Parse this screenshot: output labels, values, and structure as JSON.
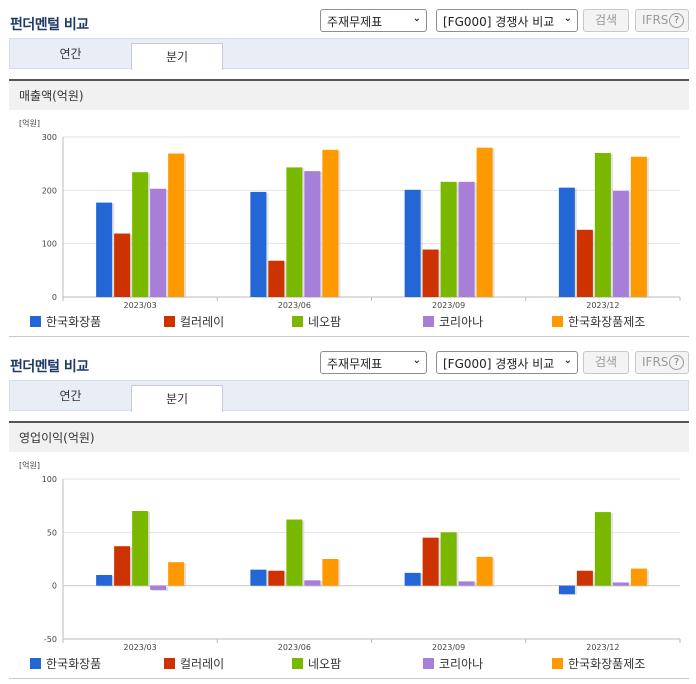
{
  "colors": [
    "#2366d6",
    "#cc3300",
    "#7ab800",
    "#a77fd8",
    "#ff9900"
  ],
  "sections": [
    {
      "title": "펀더멘털 비교",
      "select_report": "주재무제표",
      "select_compare": "[FG000] 경쟁사 비교",
      "search_label": "검색",
      "ifrs_label": "IFRS",
      "help_label": "?",
      "tab_annual": "연간",
      "tab_quarter": "분기",
      "panel_title": "매출액(억원)",
      "chart_data": {
        "type": "bar",
        "title": "매출액(억원)",
        "unit": "[억원]",
        "categories": [
          "2023/03",
          "2023/06",
          "2023/09",
          "2023/12"
        ],
        "ylim": [
          0,
          300
        ],
        "yticks": [
          0,
          100,
          200,
          300
        ],
        "grid": true,
        "legend": "bottom",
        "series": [
          {
            "name": "한국화장품",
            "values": [
              177,
              197,
              201,
              205
            ]
          },
          {
            "name": "컬러레이",
            "values": [
              119,
              68,
              89,
              126
            ]
          },
          {
            "name": "네오팜",
            "values": [
              234,
              243,
              216,
              270
            ]
          },
          {
            "name": "코리아나",
            "values": [
              203,
              236,
              216,
              199
            ]
          },
          {
            "name": "한국화장품제조",
            "values": [
              269,
              276,
              280,
              263
            ]
          }
        ]
      }
    },
    {
      "title": "펀더멘털 비교",
      "select_report": "주재무제표",
      "select_compare": "[FG000] 경쟁사 비교",
      "search_label": "검색",
      "ifrs_label": "IFRS",
      "help_label": "?",
      "tab_annual": "연간",
      "tab_quarter": "분기",
      "panel_title": "영업이익(억원)",
      "chart_data": {
        "type": "bar",
        "title": "영업이익(억원)",
        "unit": "[억원]",
        "categories": [
          "2023/03",
          "2023/06",
          "2023/09",
          "2023/12"
        ],
        "ylim": [
          -50,
          100
        ],
        "yticks": [
          -50,
          0,
          50,
          100
        ],
        "grid": true,
        "legend": "bottom",
        "series": [
          {
            "name": "한국화장품",
            "values": [
              10,
              15,
              12,
              -8
            ]
          },
          {
            "name": "컬러레이",
            "values": [
              37,
              14,
              45,
              14
            ]
          },
          {
            "name": "네오팜",
            "values": [
              70,
              62,
              50,
              69
            ]
          },
          {
            "name": "코리아나",
            "values": [
              -4,
              5,
              4,
              3
            ]
          },
          {
            "name": "한국화장품제조",
            "values": [
              22,
              25,
              27,
              16
            ]
          }
        ]
      }
    }
  ]
}
